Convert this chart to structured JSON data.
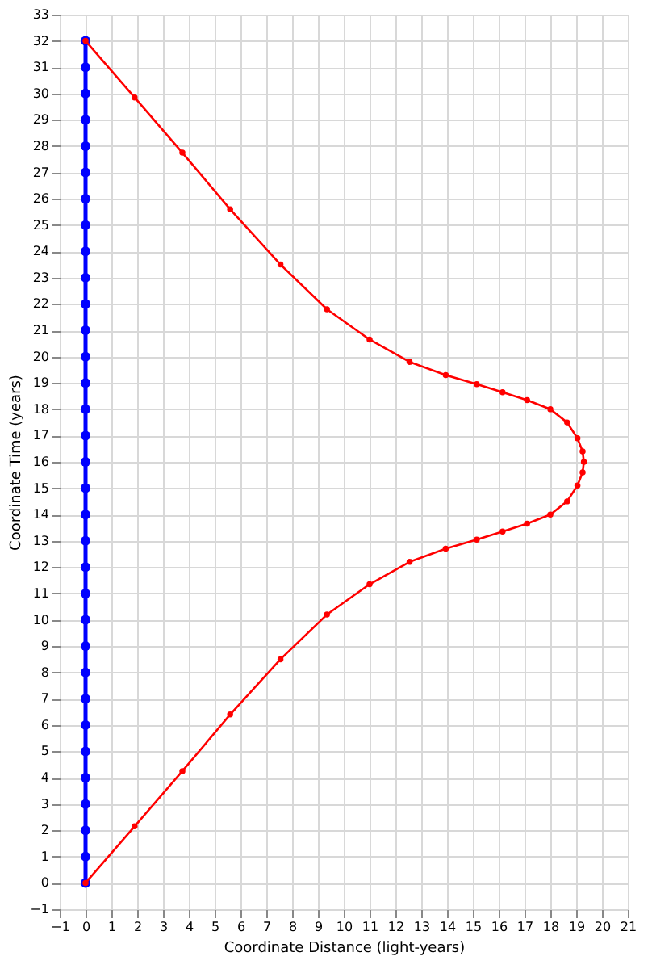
{
  "chart_data": {
    "type": "line",
    "xlabel": "Coordinate Distance (light-years)",
    "ylabel": "Coordinate Time (years)",
    "xlim": [
      -1,
      21
    ],
    "xticks": [
      -1,
      0,
      1,
      2,
      3,
      4,
      5,
      6,
      7,
      8,
      9,
      10,
      11,
      12,
      13,
      14,
      15,
      16,
      17,
      18,
      19,
      20,
      21
    ],
    "ylim": [
      -1,
      33
    ],
    "yticks": [
      -1,
      0,
      1,
      2,
      3,
      4,
      5,
      6,
      7,
      8,
      9,
      10,
      11,
      12,
      13,
      14,
      15,
      16,
      17,
      18,
      19,
      20,
      21,
      22,
      23,
      24,
      25,
      26,
      27,
      28,
      29,
      30,
      31,
      32,
      33
    ],
    "grid": true,
    "marker": "circle",
    "line_style": "solid",
    "series": [
      {
        "color": "#0000ff",
        "x": [
          0,
          0,
          0,
          0,
          0,
          0,
          0,
          0,
          0,
          0,
          0,
          0,
          0,
          0,
          0,
          0,
          0,
          0,
          0,
          0,
          0,
          0,
          0,
          0,
          0,
          0,
          0,
          0,
          0,
          0,
          0,
          0,
          0
        ],
        "values": [
          0,
          1,
          2,
          3,
          4,
          5,
          6,
          7,
          8,
          9,
          10,
          11,
          12,
          13,
          14,
          15,
          16,
          17,
          18,
          19,
          20,
          21,
          22,
          23,
          24,
          25,
          26,
          27,
          28,
          29,
          30,
          31,
          32
        ]
      },
      {
        "color": "#ff0000",
        "x": [
          0,
          1.9,
          3.75,
          5.6,
          7.55,
          9.35,
          11,
          12.55,
          13.95,
          15.15,
          16.15,
          17.1,
          18,
          18.65,
          19.05,
          19.25,
          19.3,
          19.25,
          19.05,
          18.65,
          18,
          17.1,
          16.15,
          15.15,
          13.95,
          12.55,
          11,
          9.35,
          7.55,
          5.6,
          3.75,
          1.9,
          0
        ],
        "values": [
          0,
          2.15,
          4.25,
          6.4,
          8.5,
          10.2,
          11.35,
          12.2,
          12.7,
          13.05,
          13.35,
          13.65,
          14,
          14.5,
          15.1,
          15.6,
          16,
          16.4,
          16.9,
          17.5,
          18,
          18.35,
          18.65,
          18.95,
          19.3,
          19.8,
          20.65,
          21.8,
          23.5,
          25.6,
          27.75,
          29.85,
          32
        ]
      }
    ]
  }
}
